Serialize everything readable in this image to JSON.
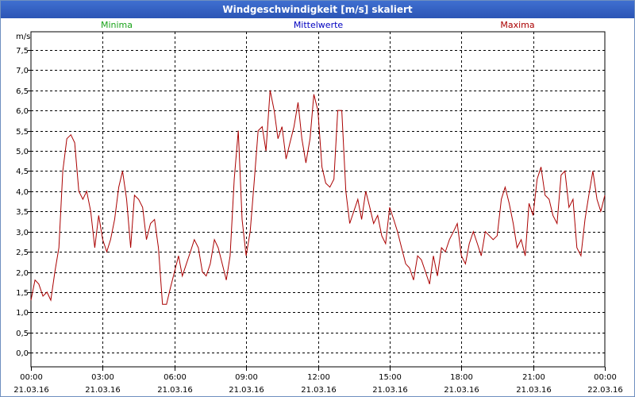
{
  "window": {
    "title": "Windgeschwindigkeit [m/s] skaliert"
  },
  "colors": {
    "min": "#1aa31a",
    "mean": "#0000c0",
    "max": "#aa0000",
    "grid": "#000000",
    "titlebar": "#2f5ec6"
  },
  "chart_data": {
    "type": "line",
    "title": "Windgeschwindigkeit [m/s] skaliert",
    "ylabel": "m/s",
    "xlabel": "",
    "ylim": [
      -0.35,
      7.95
    ],
    "xlim": [
      0,
      24
    ],
    "grid": true,
    "yticks": [
      "0,0",
      "0,5",
      "1,0",
      "1,5",
      "2,0",
      "2,5",
      "3,0",
      "3,5",
      "4,0",
      "4,5",
      "5,0",
      "5,5",
      "6,0",
      "6,5",
      "7,0",
      "7,5"
    ],
    "xticks": [
      {
        "time": "00:00",
        "date": "21.03.16"
      },
      {
        "time": "03:00",
        "date": "21.03.16"
      },
      {
        "time": "06:00",
        "date": "21.03.16"
      },
      {
        "time": "09:00",
        "date": "21.03.16"
      },
      {
        "time": "12:00",
        "date": "21.03.16"
      },
      {
        "time": "15:00",
        "date": "21.03.16"
      },
      {
        "time": "18:00",
        "date": "21.03.16"
      },
      {
        "time": "21:00",
        "date": "21.03.16"
      },
      {
        "time": "00:00",
        "date": "22.03.16"
      }
    ],
    "legend": [
      "Minima",
      "Mittelwerte",
      "Maxima"
    ],
    "series": [
      {
        "name": "Maxima",
        "x": [
          0.0,
          0.17,
          0.33,
          0.5,
          0.67,
          0.83,
          1.0,
          1.17,
          1.33,
          1.5,
          1.67,
          1.83,
          2.0,
          2.17,
          2.33,
          2.5,
          2.67,
          2.83,
          3.0,
          3.17,
          3.33,
          3.5,
          3.67,
          3.83,
          4.0,
          4.17,
          4.33,
          4.5,
          4.67,
          4.83,
          5.0,
          5.17,
          5.33,
          5.5,
          5.67,
          5.83,
          6.0,
          6.17,
          6.33,
          6.5,
          6.67,
          6.83,
          7.0,
          7.17,
          7.33,
          7.5,
          7.67,
          7.83,
          8.0,
          8.17,
          8.33,
          8.5,
          8.67,
          8.83,
          9.0,
          9.17,
          9.33,
          9.5,
          9.67,
          9.83,
          10.0,
          10.17,
          10.33,
          10.5,
          10.67,
          10.83,
          11.0,
          11.17,
          11.33,
          11.5,
          11.67,
          11.83,
          12.0,
          12.17,
          12.33,
          12.5,
          12.67,
          12.83,
          13.0,
          13.17,
          13.33,
          13.5,
          13.67,
          13.83,
          14.0,
          14.17,
          14.33,
          14.5,
          14.67,
          14.83,
          15.0,
          15.17,
          15.33,
          15.5,
          15.67,
          15.83,
          16.0,
          16.17,
          16.33,
          16.5,
          16.67,
          16.83,
          17.0,
          17.17,
          17.33,
          17.5,
          17.67,
          17.83,
          18.0,
          18.17,
          18.33,
          18.5,
          18.67,
          18.83,
          19.0,
          19.17,
          19.33,
          19.5,
          19.67,
          19.83,
          20.0,
          20.17,
          20.33,
          20.5,
          20.67,
          20.83,
          21.0,
          21.17,
          21.33,
          21.5,
          21.67,
          21.83,
          22.0,
          22.17,
          22.33,
          22.5,
          22.67,
          22.83,
          23.0,
          23.17,
          23.33,
          23.5,
          23.67,
          23.83,
          24.0
        ],
        "values": [
          1.3,
          1.8,
          1.7,
          1.4,
          1.5,
          1.3,
          2.0,
          2.6,
          4.5,
          5.3,
          5.4,
          5.2,
          4.0,
          3.8,
          4.0,
          3.5,
          2.6,
          3.4,
          2.8,
          2.5,
          2.8,
          3.3,
          4.1,
          4.5,
          3.8,
          2.6,
          3.9,
          3.8,
          3.6,
          2.8,
          3.2,
          3.3,
          2.6,
          1.2,
          1.2,
          1.6,
          2.0,
          2.4,
          1.9,
          2.2,
          2.5,
          2.8,
          2.6,
          2.0,
          1.9,
          2.2,
          2.8,
          2.6,
          2.2,
          1.8,
          2.4,
          4.3,
          5.5,
          3.3,
          2.4,
          3.0,
          4.2,
          5.5,
          5.6,
          5.0,
          6.5,
          6.0,
          5.3,
          5.6,
          4.8,
          5.2,
          5.6,
          6.2,
          5.3,
          4.7,
          5.3,
          6.4,
          6.0,
          4.6,
          4.2,
          4.1,
          4.3,
          6.0,
          6.0,
          4.0,
          3.2,
          3.5,
          3.8,
          3.3,
          4.0,
          3.6,
          3.2,
          3.4,
          2.9,
          2.7,
          3.6,
          3.3,
          3.0,
          2.6,
          2.2,
          2.1,
          1.8,
          2.4,
          2.3,
          2.0,
          1.7,
          2.4,
          1.9,
          2.6,
          2.5,
          2.8,
          3.0,
          3.2,
          2.4,
          2.2,
          2.7,
          3.0,
          2.7,
          2.4,
          3.0,
          2.9,
          2.8,
          2.9,
          3.8,
          4.1,
          3.7,
          3.2,
          2.6,
          2.8,
          2.4,
          3.7,
          3.4,
          4.3,
          4.6,
          3.9,
          3.8,
          3.4,
          3.2,
          4.4,
          4.5,
          3.6,
          3.8,
          2.6,
          2.4,
          3.3,
          3.9,
          4.5,
          3.8,
          3.5,
          3.9
        ],
        "values_note": "approximate"
      }
    ]
  }
}
